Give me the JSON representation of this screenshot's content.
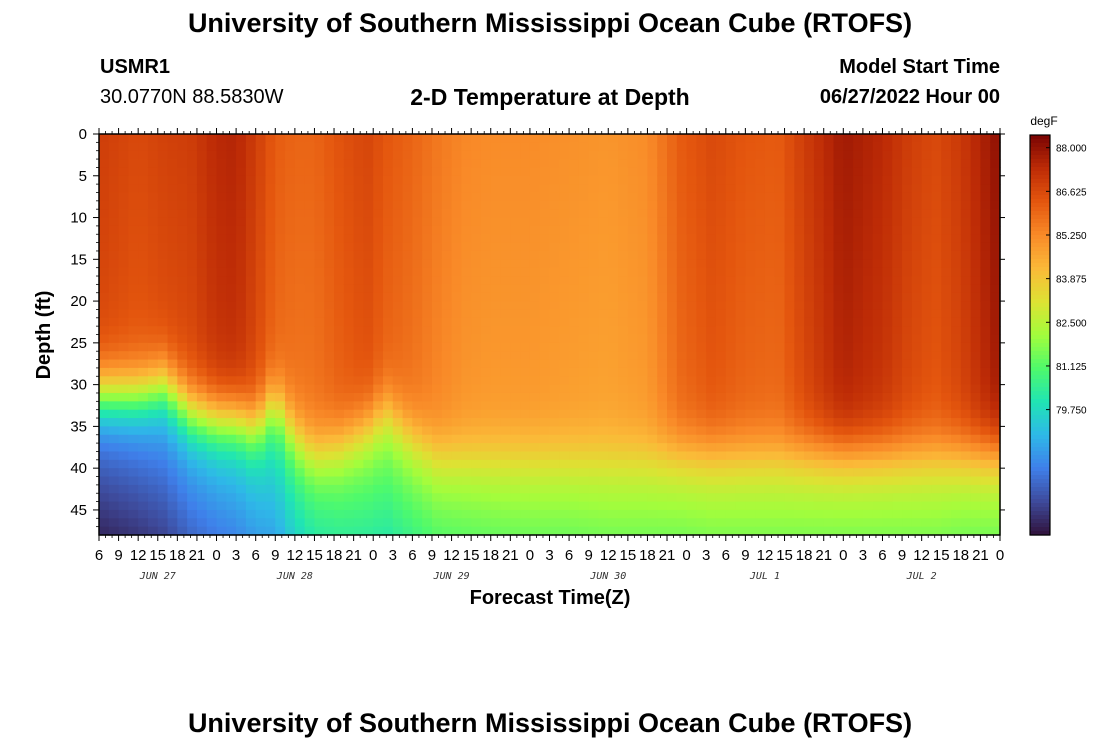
{
  "header": {
    "title": "University of Southern Mississippi Ocean Cube (RTOFS)",
    "station_id": "USMR1",
    "station_coords": "30.0770N  88.5830W",
    "chart_title": "2-D Temperature at Depth",
    "model_label": "Model Start Time",
    "model_date": "06/27/2022 Hour 00"
  },
  "footer": {
    "title": "University of Southern Mississippi Ocean Cube (RTOFS)"
  },
  "chart_data": {
    "type": "heatmap",
    "title": "2-D Temperature at Depth",
    "xlabel": "Forecast Time(Z)",
    "ylabel": "Depth (ft)",
    "x_unit": "hours since 06/27/2022 00Z",
    "xlim": [
      6,
      144
    ],
    "ylim": [
      0,
      48
    ],
    "x_ticks": [
      {
        "hour": 6,
        "label": "6"
      },
      {
        "hour": 9,
        "label": "9"
      },
      {
        "hour": 12,
        "label": "12"
      },
      {
        "hour": 15,
        "label": "15"
      },
      {
        "hour": 18,
        "label": "18"
      },
      {
        "hour": 21,
        "label": "21"
      },
      {
        "hour": 24,
        "label": "0"
      },
      {
        "hour": 27,
        "label": "3"
      },
      {
        "hour": 30,
        "label": "6"
      },
      {
        "hour": 33,
        "label": "9"
      },
      {
        "hour": 36,
        "label": "12"
      },
      {
        "hour": 39,
        "label": "15"
      },
      {
        "hour": 42,
        "label": "18"
      },
      {
        "hour": 45,
        "label": "21"
      },
      {
        "hour": 48,
        "label": "0"
      },
      {
        "hour": 51,
        "label": "3"
      },
      {
        "hour": 54,
        "label": "6"
      },
      {
        "hour": 57,
        "label": "9"
      },
      {
        "hour": 60,
        "label": "12"
      },
      {
        "hour": 63,
        "label": "15"
      },
      {
        "hour": 66,
        "label": "18"
      },
      {
        "hour": 69,
        "label": "21"
      },
      {
        "hour": 72,
        "label": "0"
      },
      {
        "hour": 75,
        "label": "3"
      },
      {
        "hour": 78,
        "label": "6"
      },
      {
        "hour": 81,
        "label": "9"
      },
      {
        "hour": 84,
        "label": "12"
      },
      {
        "hour": 87,
        "label": "15"
      },
      {
        "hour": 90,
        "label": "18"
      },
      {
        "hour": 93,
        "label": "21"
      },
      {
        "hour": 96,
        "label": "0"
      },
      {
        "hour": 99,
        "label": "3"
      },
      {
        "hour": 102,
        "label": "6"
      },
      {
        "hour": 105,
        "label": "9"
      },
      {
        "hour": 108,
        "label": "12"
      },
      {
        "hour": 111,
        "label": "15"
      },
      {
        "hour": 114,
        "label": "18"
      },
      {
        "hour": 117,
        "label": "21"
      },
      {
        "hour": 120,
        "label": "0"
      },
      {
        "hour": 123,
        "label": "3"
      },
      {
        "hour": 126,
        "label": "6"
      },
      {
        "hour": 129,
        "label": "9"
      },
      {
        "hour": 132,
        "label": "12"
      },
      {
        "hour": 135,
        "label": "15"
      },
      {
        "hour": 138,
        "label": "18"
      },
      {
        "hour": 141,
        "label": "21"
      },
      {
        "hour": 144,
        "label": "0"
      }
    ],
    "day_labels": [
      {
        "hour": 15,
        "label": "JUN 27"
      },
      {
        "hour": 36,
        "label": "JUN 28"
      },
      {
        "hour": 60,
        "label": "JUN 29"
      },
      {
        "hour": 84,
        "label": "JUN 30"
      },
      {
        "hour": 108,
        "label": "JUL 1"
      },
      {
        "hour": 132,
        "label": "JUL 2"
      }
    ],
    "y_ticks": [
      0,
      5,
      10,
      15,
      20,
      25,
      30,
      35,
      40,
      45
    ],
    "colorbar": {
      "unit": "degF",
      "range": [
        75.8,
        88.4
      ],
      "labels": [
        "88.000",
        "86.625",
        "85.250",
        "83.875",
        "82.500",
        "81.125",
        "79.750"
      ],
      "colormap": [
        "#30123b",
        "#3e4a9b",
        "#3f7fea",
        "#2eb8e8",
        "#20e5b3",
        "#4ffa6b",
        "#a3fd3c",
        "#dde233",
        "#fbb938",
        "#f98a28",
        "#e4560e",
        "#bd2b06",
        "#7a0403"
      ]
    },
    "columns": [
      {
        "hour": 6,
        "surface": 86.9,
        "thermocline_ft": 31,
        "bottom": 77.5
      },
      {
        "hour": 12,
        "surface": 86.6,
        "thermocline_ft": 31,
        "bottom": 77.8
      },
      {
        "hour": 16,
        "surface": 86.8,
        "thermocline_ft": 30,
        "bottom": 78.2
      },
      {
        "hour": 20,
        "surface": 86.9,
        "thermocline_ft": 33,
        "bottom": 78.5
      },
      {
        "hour": 24,
        "surface": 87.4,
        "thermocline_ft": 34,
        "bottom": 78.8
      },
      {
        "hour": 27,
        "surface": 87.5,
        "thermocline_ft": 34,
        "bottom": 79.0
      },
      {
        "hour": 30,
        "surface": 86.9,
        "thermocline_ft": 35,
        "bottom": 79.3
      },
      {
        "hour": 33,
        "surface": 86.2,
        "thermocline_ft": 32,
        "bottom": 79.8
      },
      {
        "hour": 36,
        "surface": 86.0,
        "thermocline_ft": 36,
        "bottom": 80.3
      },
      {
        "hour": 39,
        "surface": 86.0,
        "thermocline_ft": 38,
        "bottom": 80.7
      },
      {
        "hour": 43,
        "surface": 86.4,
        "thermocline_ft": 37,
        "bottom": 81.0
      },
      {
        "hour": 47,
        "surface": 86.7,
        "thermocline_ft": 35,
        "bottom": 81.2
      },
      {
        "hour": 50,
        "surface": 86.3,
        "thermocline_ft": 33,
        "bottom": 81.3
      },
      {
        "hour": 54,
        "surface": 86.0,
        "thermocline_ft": 36,
        "bottom": 81.4
      },
      {
        "hour": 58,
        "surface": 85.6,
        "thermocline_ft": 38,
        "bottom": 81.6
      },
      {
        "hour": 62,
        "surface": 85.3,
        "thermocline_ft": 38,
        "bottom": 81.7
      },
      {
        "hour": 66,
        "surface": 85.2,
        "thermocline_ft": 38,
        "bottom": 81.8
      },
      {
        "hour": 72,
        "surface": 85.2,
        "thermocline_ft": 38,
        "bottom": 81.9
      },
      {
        "hour": 78,
        "surface": 85.1,
        "thermocline_ft": 38,
        "bottom": 81.9
      },
      {
        "hour": 84,
        "surface": 85.0,
        "thermocline_ft": 38,
        "bottom": 82.0
      },
      {
        "hour": 90,
        "surface": 85.2,
        "thermocline_ft": 38,
        "bottom": 82.0
      },
      {
        "hour": 95,
        "surface": 86.2,
        "thermocline_ft": 38,
        "bottom": 82.0
      },
      {
        "hour": 100,
        "surface": 86.6,
        "thermocline_ft": 38,
        "bottom": 82.1
      },
      {
        "hour": 105,
        "surface": 86.3,
        "thermocline_ft": 38,
        "bottom": 82.1
      },
      {
        "hour": 110,
        "surface": 86.2,
        "thermocline_ft": 38,
        "bottom": 82.1
      },
      {
        "hour": 114,
        "surface": 86.9,
        "thermocline_ft": 38,
        "bottom": 82.1
      },
      {
        "hour": 120,
        "surface": 87.8,
        "thermocline_ft": 38,
        "bottom": 82.1
      },
      {
        "hour": 126,
        "surface": 87.4,
        "thermocline_ft": 38,
        "bottom": 82.1
      },
      {
        "hour": 130,
        "surface": 86.9,
        "thermocline_ft": 38,
        "bottom": 82.1
      },
      {
        "hour": 134,
        "surface": 86.6,
        "thermocline_ft": 38,
        "bottom": 82.1
      },
      {
        "hour": 138,
        "surface": 87.0,
        "thermocline_ft": 38,
        "bottom": 82.0
      },
      {
        "hour": 144,
        "surface": 88.1,
        "thermocline_ft": 38,
        "bottom": 82.0
      }
    ]
  }
}
